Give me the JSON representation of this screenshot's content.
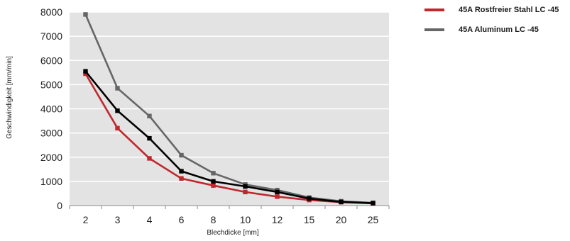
{
  "chart_data": {
    "type": "line",
    "xlabel": "Blechdicke [mm]",
    "ylabel": "Geschwindigkeit [mm/min]",
    "categories": [
      "2",
      "3",
      "4",
      "6",
      "8",
      "10",
      "12",
      "15",
      "20",
      "25"
    ],
    "y_ticks": [
      "0",
      "1000",
      "2000",
      "3000",
      "4000",
      "5000",
      "6000",
      "7000",
      "8000"
    ],
    "ylim": [
      0,
      8000
    ],
    "grid": true,
    "legend_position": "top-right",
    "series": [
      {
        "name": "45A Rostfreier Stahl LC -45",
        "color": "#c1272d",
        "values": [
          5450,
          3200,
          1950,
          1120,
          830,
          560,
          370,
          230,
          140,
          90
        ]
      },
      {
        "name": "45A Aluminum LC -45",
        "color": "#666666",
        "values": [
          7900,
          4850,
          3700,
          2080,
          1340,
          870,
          640,
          330,
          180,
          110
        ]
      },
      {
        "color": "#000000",
        "values": [
          5550,
          3920,
          2780,
          1420,
          1000,
          790,
          560,
          290,
          150,
          100
        ]
      }
    ]
  }
}
